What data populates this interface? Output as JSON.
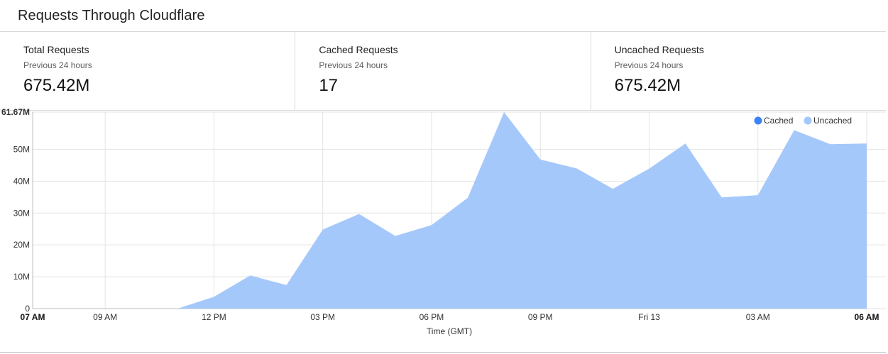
{
  "header": {
    "title": "Requests Through Cloudflare"
  },
  "stats": [
    {
      "label": "Total Requests",
      "sub": "Previous 24 hours",
      "value": "675.42M"
    },
    {
      "label": "Cached Requests",
      "sub": "Previous 24 hours",
      "value": "17"
    },
    {
      "label": "Uncached Requests",
      "sub": "Previous 24 hours",
      "value": "675.42M"
    }
  ],
  "chart_data": {
    "type": "area",
    "xlabel": "Time (GMT)",
    "ylabel": "",
    "ylim": [
      0,
      61.67
    ],
    "y_unit": "M",
    "y_ticks": [
      {
        "value": 0,
        "label": "0"
      },
      {
        "value": 10,
        "label": "10M"
      },
      {
        "value": 20,
        "label": "20M"
      },
      {
        "value": 30,
        "label": "30M"
      },
      {
        "value": 40,
        "label": "40M"
      },
      {
        "value": 50,
        "label": "50M"
      },
      {
        "value": 61.67,
        "label": "61.67M"
      }
    ],
    "x_ticks": [
      {
        "hour": 0,
        "label": "07 AM",
        "bold": true
      },
      {
        "hour": 2,
        "label": "09 AM",
        "bold": false
      },
      {
        "hour": 5,
        "label": "12 PM",
        "bold": false
      },
      {
        "hour": 8,
        "label": "03 PM",
        "bold": false
      },
      {
        "hour": 11,
        "label": "06 PM",
        "bold": false
      },
      {
        "hour": 14,
        "label": "09 PM",
        "bold": false
      },
      {
        "hour": 17,
        "label": "Fri 13",
        "bold": false
      },
      {
        "hour": 20,
        "label": "03 AM",
        "bold": false
      },
      {
        "hour": 23,
        "label": "06 AM",
        "bold": true
      }
    ],
    "legend": {
      "position": "top-right"
    },
    "grid": true,
    "series": [
      {
        "name": "Cached",
        "color": "#3b82f6",
        "x": [
          0,
          1,
          2,
          3,
          4,
          5,
          6,
          7,
          8,
          9,
          10,
          11,
          12,
          13,
          14,
          15,
          16,
          17,
          18,
          19,
          20,
          21,
          22,
          23
        ],
        "values": [
          0,
          0,
          0,
          0,
          0,
          0,
          0,
          0,
          0,
          0,
          0,
          0,
          0,
          0,
          0,
          0,
          0,
          0,
          0,
          0,
          0,
          0,
          0,
          0
        ]
      },
      {
        "name": "Uncached",
        "color": "#a5c8fb",
        "x": [
          0,
          1,
          2,
          3,
          4,
          5,
          6,
          7,
          8,
          9,
          10,
          11,
          12,
          13,
          14,
          15,
          16,
          17,
          18,
          19,
          20,
          21,
          22,
          23
        ],
        "values": [
          0,
          0,
          0,
          0,
          0,
          3.7,
          10.4,
          7.4,
          24.8,
          29.7,
          22.8,
          26.2,
          34.8,
          61.67,
          46.8,
          44.0,
          37.6,
          43.9,
          51.8,
          34.9,
          35.6,
          56.0,
          51.6,
          51.8
        ]
      }
    ]
  }
}
